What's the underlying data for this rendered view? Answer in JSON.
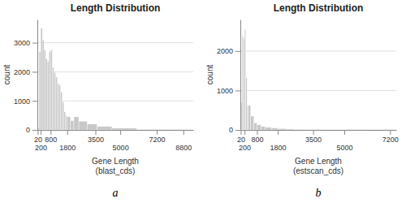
{
  "chart_data": [
    {
      "type": "histogram",
      "title": "Length Distribution",
      "xlabel": "Gene Length\n(blast_cds)",
      "ylabel": "count",
      "annotations": [
        "a"
      ],
      "color": "#c8c8c8",
      "bins": [
        20,
        100,
        200,
        300,
        400,
        500,
        600,
        700,
        800,
        900,
        1000,
        1100,
        1200,
        1300,
        1400,
        1500,
        1600,
        1700,
        1800,
        2000,
        2200,
        2500,
        3000,
        3600,
        4500,
        6000,
        8000,
        9400
      ],
      "values": [
        80,
        2700,
        3500,
        3100,
        2750,
        2450,
        2350,
        2700,
        2750,
        2150,
        1980,
        1820,
        1600,
        1550,
        1300,
        960,
        620,
        490,
        450,
        320,
        450,
        300,
        200,
        120,
        60,
        20,
        5
      ],
      "xlim": [
        0,
        9400
      ],
      "ylim": [
        0,
        3800
      ],
      "xticks": [
        20,
        200,
        800,
        1800,
        3500,
        5000,
        7200,
        8800
      ],
      "yticks": [
        0,
        1000,
        2000,
        3000
      ],
      "grid": true
    },
    {
      "type": "histogram",
      "title": "Length Distribution",
      "xlabel": "Gene Length\n(estscan_cds)",
      "ylabel": "count",
      "annotations": [
        "b"
      ],
      "color": "#c8c8c8",
      "bins": [
        20,
        80,
        140,
        200,
        260,
        320,
        380,
        500,
        650,
        800,
        1000,
        1200,
        1500,
        1800,
        2200,
        2600,
        3200,
        4000,
        5000,
        6500,
        7500
      ],
      "values": [
        700,
        2380,
        2320,
        2550,
        1320,
        620,
        620,
        350,
        180,
        130,
        90,
        65,
        50,
        35,
        22,
        15,
        10,
        6,
        3,
        1
      ],
      "xlim": [
        0,
        7500
      ],
      "ylim": [
        0,
        2800
      ],
      "xticks": [
        20,
        200,
        800,
        1800,
        3500,
        5000,
        7200
      ],
      "yticks": [
        0,
        1000,
        2000
      ],
      "grid": true
    }
  ]
}
